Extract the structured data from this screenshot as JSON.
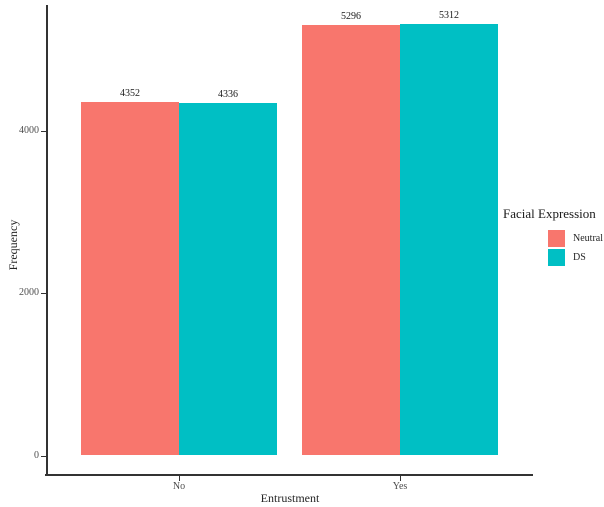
{
  "chart_data": {
    "type": "bar",
    "title": "",
    "categories": [
      "No",
      "Yes"
    ],
    "series": [
      {
        "name": "Neutral",
        "color": "#F8766D",
        "values": [
          4352,
          5296
        ]
      },
      {
        "name": "DS",
        "color": "#00BFC4",
        "values": [
          4336,
          5312
        ]
      }
    ],
    "bar_value_labels": [
      [
        "4352",
        "5296"
      ],
      [
        "4336",
        "5312"
      ]
    ],
    "xlabel": "Entrustment",
    "ylabel": "Frequency",
    "yticks": [
      0,
      2000,
      4000
    ],
    "ytick_labels": [
      "0",
      "2000",
      "4000"
    ],
    "ylim": [
      0,
      5580
    ],
    "legend_title": "Facial Expression",
    "legend_position": "right",
    "grid": false,
    "bar_labels_shown": true,
    "colors": {
      "neutral_fill": "#F8766D",
      "ds_fill": "#00BFC4",
      "axis_line": "#333333",
      "tick_text": "#4d4d4d",
      "label_text": "#1a1a1a"
    }
  }
}
